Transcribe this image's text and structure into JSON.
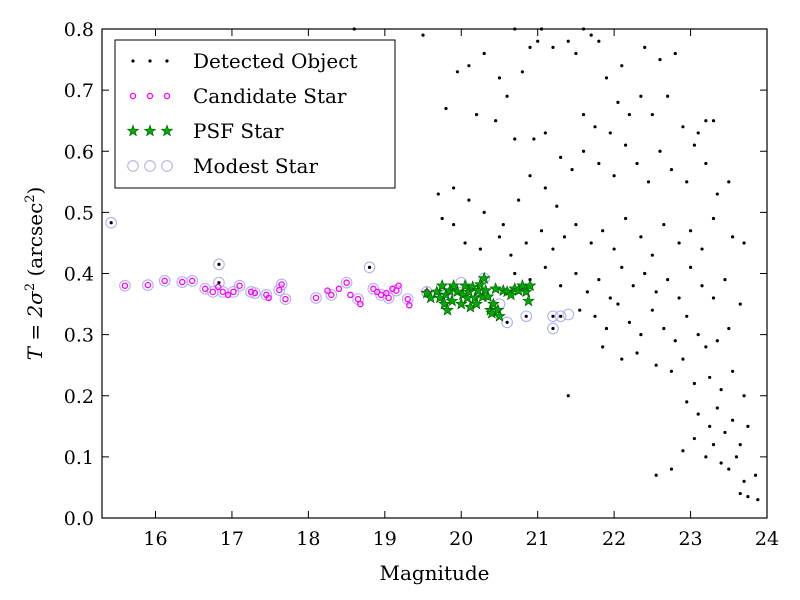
{
  "chart_data": {
    "type": "scatter",
    "xlabel": "Magnitude",
    "ylabel_parts": {
      "main": "T = 2σ",
      "sup1": "2",
      "unit": " (arcsec",
      "sup2": "2",
      "close": ")"
    },
    "xlim": [
      15.3,
      24.0
    ],
    "ylim": [
      0.0,
      0.8
    ],
    "xticks": [
      16,
      17,
      18,
      19,
      20,
      21,
      22,
      23,
      24
    ],
    "yticks": [
      0.0,
      0.1,
      0.2,
      0.3,
      0.4,
      0.5,
      0.6,
      0.7,
      0.8
    ],
    "legend_position": "upper-left",
    "colors": {
      "detected": "#000000",
      "candidate": "#ff00ff",
      "psf_fill": "#00aa00",
      "psf_edge": "#005500",
      "modest": "#b0b0f0"
    },
    "series": [
      {
        "name": "Detected Object",
        "key": "detected",
        "points": [
          [
            15.42,
            0.483
          ],
          [
            16.83,
            0.415
          ],
          [
            16.83,
            0.385
          ],
          [
            18.8,
            0.41
          ],
          [
            19.55,
            0.37
          ],
          [
            20.6,
            0.32
          ],
          [
            20.85,
            0.33
          ],
          [
            21.2,
            0.33
          ],
          [
            21.2,
            0.31
          ],
          [
            21.3,
            0.33
          ],
          [
            21.4,
            0.2
          ],
          [
            18.6,
            0.8
          ],
          [
            19.5,
            0.79
          ],
          [
            20.7,
            0.8
          ],
          [
            21.05,
            0.8
          ],
          [
            21.6,
            0.8
          ],
          [
            19.9,
            0.54
          ],
          [
            19.7,
            0.53
          ],
          [
            19.95,
            0.73
          ],
          [
            20.1,
            0.74
          ],
          [
            20.3,
            0.76
          ],
          [
            20.5,
            0.72
          ],
          [
            20.6,
            0.69
          ],
          [
            20.8,
            0.73
          ],
          [
            20.9,
            0.77
          ],
          [
            21.0,
            0.78
          ],
          [
            21.2,
            0.77
          ],
          [
            21.4,
            0.78
          ],
          [
            21.5,
            0.76
          ],
          [
            21.7,
            0.79
          ],
          [
            21.8,
            0.78
          ],
          [
            21.9,
            0.72
          ],
          [
            22.1,
            0.74
          ],
          [
            22.4,
            0.77
          ],
          [
            22.6,
            0.75
          ],
          [
            22.8,
            0.76
          ],
          [
            19.8,
            0.67
          ],
          [
            20.2,
            0.66
          ],
          [
            20.45,
            0.65
          ],
          [
            20.7,
            0.62
          ],
          [
            20.95,
            0.62
          ],
          [
            21.1,
            0.63
          ],
          [
            21.3,
            0.59
          ],
          [
            21.6,
            0.66
          ],
          [
            21.75,
            0.64
          ],
          [
            21.95,
            0.63
          ],
          [
            22.05,
            0.68
          ],
          [
            22.2,
            0.66
          ],
          [
            22.35,
            0.69
          ],
          [
            22.5,
            0.66
          ],
          [
            22.7,
            0.69
          ],
          [
            22.9,
            0.64
          ],
          [
            23.1,
            0.63
          ],
          [
            23.2,
            0.65
          ],
          [
            23.3,
            0.65
          ],
          [
            19.75,
            0.49
          ],
          [
            19.9,
            0.48
          ],
          [
            20.1,
            0.52
          ],
          [
            20.3,
            0.5
          ],
          [
            20.55,
            0.48
          ],
          [
            20.75,
            0.52
          ],
          [
            20.9,
            0.56
          ],
          [
            21.1,
            0.54
          ],
          [
            21.25,
            0.51
          ],
          [
            21.45,
            0.57
          ],
          [
            21.6,
            0.6
          ],
          [
            21.8,
            0.58
          ],
          [
            22.0,
            0.56
          ],
          [
            22.15,
            0.61
          ],
          [
            22.3,
            0.58
          ],
          [
            22.45,
            0.55
          ],
          [
            22.6,
            0.6
          ],
          [
            22.75,
            0.57
          ],
          [
            22.95,
            0.55
          ],
          [
            23.05,
            0.61
          ],
          [
            23.2,
            0.58
          ],
          [
            23.35,
            0.53
          ],
          [
            23.5,
            0.55
          ],
          [
            20.05,
            0.45
          ],
          [
            20.25,
            0.44
          ],
          [
            20.5,
            0.46
          ],
          [
            20.65,
            0.43
          ],
          [
            20.85,
            0.45
          ],
          [
            21.05,
            0.47
          ],
          [
            21.2,
            0.44
          ],
          [
            21.35,
            0.46
          ],
          [
            21.5,
            0.48
          ],
          [
            21.7,
            0.45
          ],
          [
            21.85,
            0.47
          ],
          [
            22.0,
            0.44
          ],
          [
            22.15,
            0.49
          ],
          [
            22.35,
            0.46
          ],
          [
            22.5,
            0.43
          ],
          [
            22.65,
            0.48
          ],
          [
            22.85,
            0.45
          ],
          [
            23.0,
            0.47
          ],
          [
            23.15,
            0.44
          ],
          [
            23.3,
            0.49
          ],
          [
            23.55,
            0.46
          ],
          [
            23.7,
            0.45
          ],
          [
            20.7,
            0.4
          ],
          [
            20.9,
            0.39
          ],
          [
            21.1,
            0.41
          ],
          [
            21.3,
            0.38
          ],
          [
            21.5,
            0.4
          ],
          [
            21.65,
            0.37
          ],
          [
            21.8,
            0.39
          ],
          [
            21.95,
            0.36
          ],
          [
            22.1,
            0.41
          ],
          [
            22.25,
            0.38
          ],
          [
            22.4,
            0.4
          ],
          [
            22.55,
            0.37
          ],
          [
            22.7,
            0.39
          ],
          [
            22.85,
            0.36
          ],
          [
            23.0,
            0.41
          ],
          [
            23.15,
            0.38
          ],
          [
            23.3,
            0.36
          ],
          [
            23.45,
            0.39
          ],
          [
            21.55,
            0.34
          ],
          [
            21.75,
            0.33
          ],
          [
            21.9,
            0.31
          ],
          [
            22.05,
            0.35
          ],
          [
            22.2,
            0.32
          ],
          [
            22.35,
            0.3
          ],
          [
            22.5,
            0.34
          ],
          [
            22.65,
            0.31
          ],
          [
            22.8,
            0.29
          ],
          [
            22.95,
            0.33
          ],
          [
            23.1,
            0.3
          ],
          [
            23.2,
            0.28
          ],
          [
            23.35,
            0.29
          ],
          [
            23.5,
            0.31
          ],
          [
            23.65,
            0.35
          ],
          [
            21.85,
            0.28
          ],
          [
            22.1,
            0.26
          ],
          [
            22.3,
            0.27
          ],
          [
            22.55,
            0.25
          ],
          [
            22.75,
            0.24
          ],
          [
            22.9,
            0.26
          ],
          [
            23.05,
            0.22
          ],
          [
            23.25,
            0.23
          ],
          [
            23.4,
            0.21
          ],
          [
            23.55,
            0.24
          ],
          [
            23.7,
            0.2
          ],
          [
            22.95,
            0.19
          ],
          [
            23.1,
            0.17
          ],
          [
            23.25,
            0.15
          ],
          [
            23.35,
            0.18
          ],
          [
            23.45,
            0.14
          ],
          [
            23.55,
            0.16
          ],
          [
            23.65,
            0.12
          ],
          [
            23.75,
            0.15
          ],
          [
            22.9,
            0.11
          ],
          [
            23.05,
            0.13
          ],
          [
            23.2,
            0.1
          ],
          [
            23.3,
            0.12
          ],
          [
            23.4,
            0.09
          ],
          [
            23.5,
            0.08
          ],
          [
            23.6,
            0.1
          ],
          [
            23.7,
            0.06
          ],
          [
            23.85,
            0.07
          ],
          [
            22.55,
            0.07
          ],
          [
            22.75,
            0.08
          ],
          [
            23.65,
            0.04
          ],
          [
            23.75,
            0.035
          ],
          [
            23.88,
            0.03
          ]
        ]
      },
      {
        "name": "Candidate Star",
        "key": "candidate",
        "points": [
          [
            15.6,
            0.38
          ],
          [
            15.9,
            0.381
          ],
          [
            16.12,
            0.388
          ],
          [
            16.35,
            0.386
          ],
          [
            16.48,
            0.388
          ],
          [
            16.65,
            0.375
          ],
          [
            16.75,
            0.37
          ],
          [
            16.82,
            0.378
          ],
          [
            16.88,
            0.37
          ],
          [
            16.95,
            0.365
          ],
          [
            17.02,
            0.37
          ],
          [
            17.1,
            0.38
          ],
          [
            17.25,
            0.37
          ],
          [
            17.3,
            0.368
          ],
          [
            17.45,
            0.365
          ],
          [
            17.48,
            0.36
          ],
          [
            17.62,
            0.373
          ],
          [
            17.65,
            0.382
          ],
          [
            17.7,
            0.358
          ],
          [
            18.1,
            0.36
          ],
          [
            18.25,
            0.372
          ],
          [
            18.3,
            0.365
          ],
          [
            18.4,
            0.375
          ],
          [
            18.5,
            0.385
          ],
          [
            18.55,
            0.365
          ],
          [
            18.65,
            0.358
          ],
          [
            18.68,
            0.35
          ],
          [
            18.85,
            0.375
          ],
          [
            18.9,
            0.37
          ],
          [
            18.95,
            0.365
          ],
          [
            19.02,
            0.368
          ],
          [
            19.05,
            0.36
          ],
          [
            19.1,
            0.375
          ],
          [
            19.15,
            0.372
          ],
          [
            19.18,
            0.38
          ],
          [
            19.3,
            0.358
          ],
          [
            19.32,
            0.348
          ],
          [
            19.55,
            0.37
          ]
        ]
      },
      {
        "name": "PSF Star",
        "key": "psf",
        "points": [
          [
            19.55,
            0.368
          ],
          [
            19.6,
            0.36
          ],
          [
            19.68,
            0.37
          ],
          [
            19.72,
            0.36
          ],
          [
            19.75,
            0.38
          ],
          [
            19.78,
            0.35
          ],
          [
            19.8,
            0.365
          ],
          [
            19.82,
            0.34
          ],
          [
            19.85,
            0.372
          ],
          [
            19.88,
            0.355
          ],
          [
            19.9,
            0.38
          ],
          [
            19.95,
            0.37
          ],
          [
            20.0,
            0.35
          ],
          [
            20.02,
            0.365
          ],
          [
            20.05,
            0.38
          ],
          [
            20.08,
            0.36
          ],
          [
            20.1,
            0.37
          ],
          [
            20.12,
            0.345
          ],
          [
            20.15,
            0.378
          ],
          [
            20.18,
            0.36
          ],
          [
            20.2,
            0.35
          ],
          [
            20.22,
            0.372
          ],
          [
            20.25,
            0.382
          ],
          [
            20.28,
            0.362
          ],
          [
            20.3,
            0.392
          ],
          [
            20.32,
            0.372
          ],
          [
            20.35,
            0.362
          ],
          [
            20.38,
            0.34
          ],
          [
            20.4,
            0.335
          ],
          [
            20.42,
            0.35
          ],
          [
            20.45,
            0.375
          ],
          [
            20.48,
            0.34
          ],
          [
            20.5,
            0.33
          ],
          [
            20.55,
            0.372
          ],
          [
            20.6,
            0.37
          ],
          [
            20.65,
            0.365
          ],
          [
            20.7,
            0.375
          ],
          [
            20.75,
            0.372
          ],
          [
            20.8,
            0.38
          ],
          [
            20.85,
            0.37
          ],
          [
            20.9,
            0.38
          ],
          [
            20.88,
            0.355
          ]
        ]
      },
      {
        "name": "Modest Star",
        "key": "modest",
        "points": [
          [
            15.42,
            0.483
          ],
          [
            15.6,
            0.38
          ],
          [
            15.9,
            0.381
          ],
          [
            16.12,
            0.388
          ],
          [
            16.35,
            0.386
          ],
          [
            16.48,
            0.388
          ],
          [
            16.65,
            0.375
          ],
          [
            16.75,
            0.37
          ],
          [
            16.83,
            0.415
          ],
          [
            16.83,
            0.385
          ],
          [
            16.88,
            0.37
          ],
          [
            17.02,
            0.37
          ],
          [
            17.1,
            0.38
          ],
          [
            17.25,
            0.37
          ],
          [
            17.3,
            0.368
          ],
          [
            17.45,
            0.365
          ],
          [
            17.62,
            0.373
          ],
          [
            17.65,
            0.382
          ],
          [
            17.7,
            0.358
          ],
          [
            18.1,
            0.36
          ],
          [
            18.3,
            0.365
          ],
          [
            18.5,
            0.385
          ],
          [
            18.65,
            0.358
          ],
          [
            18.8,
            0.41
          ],
          [
            18.85,
            0.375
          ],
          [
            18.95,
            0.365
          ],
          [
            19.05,
            0.36
          ],
          [
            19.15,
            0.372
          ],
          [
            19.3,
            0.358
          ],
          [
            19.55,
            0.37
          ],
          [
            19.8,
            0.365
          ],
          [
            20.0,
            0.385
          ],
          [
            20.3,
            0.392
          ],
          [
            20.5,
            0.35
          ],
          [
            20.6,
            0.32
          ],
          [
            20.85,
            0.33
          ],
          [
            21.2,
            0.33
          ],
          [
            21.2,
            0.31
          ],
          [
            21.3,
            0.33
          ],
          [
            21.4,
            0.333
          ]
        ]
      }
    ]
  }
}
